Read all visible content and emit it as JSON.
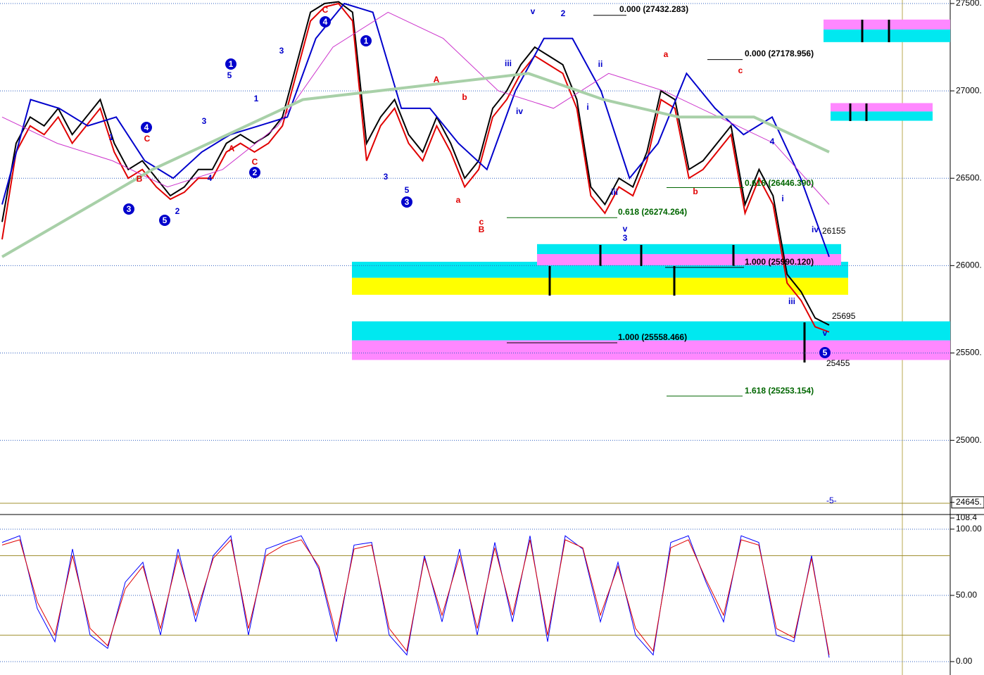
{
  "chart_data": [
    {
      "type": "line",
      "grid": true,
      "ylim": [
        24640,
        27520
      ],
      "yticks": [
        {
          "value": 27500,
          "label": "27500."
        },
        {
          "value": 27000,
          "label": "27000."
        },
        {
          "value": 26500,
          "label": "26500."
        },
        {
          "value": 26000,
          "label": "26000."
        },
        {
          "value": 25500,
          "label": "25500."
        },
        {
          "value": 25000,
          "label": "25000."
        },
        {
          "value": 24645,
          "label": "24645."
        }
      ],
      "series": [
        {
          "color": "#000000",
          "values": [
            26250,
            26700,
            26850,
            26800,
            26900,
            26750,
            26850,
            26950,
            26700,
            26550,
            26600,
            26500,
            26400,
            26450,
            26550,
            26550,
            26700,
            26750,
            26700,
            26750,
            26850,
            27150,
            27450,
            27500,
            27510,
            27450,
            26700,
            26850,
            26950,
            26750,
            26650,
            26850,
            26700,
            26500,
            26600,
            26900,
            27000,
            27150,
            27250,
            27200,
            27150,
            26950,
            26450,
            26350,
            26500,
            26450,
            26650,
            27000,
            26950,
            26550,
            26600,
            26700,
            26800,
            26350,
            26550,
            26400,
            25950,
            25850,
            25700,
            25660
          ]
        },
        {
          "color": "#e00000",
          "values": [
            26150,
            26650,
            26800,
            26750,
            26850,
            26700,
            26800,
            26900,
            26650,
            26500,
            26550,
            26450,
            26380,
            26420,
            26500,
            26500,
            26650,
            26700,
            26650,
            26700,
            26800,
            27100,
            27400,
            27480,
            27500,
            27400,
            26600,
            26800,
            26900,
            26700,
            26600,
            26800,
            26650,
            26450,
            26550,
            26850,
            26950,
            27100,
            27200,
            27150,
            27100,
            26900,
            26400,
            26300,
            26450,
            26400,
            26600,
            26950,
            26900,
            26500,
            26550,
            26650,
            26750,
            26300,
            26500,
            26350,
            25900,
            25800,
            25650,
            25620
          ]
        },
        {
          "color": "#0000cc",
          "values": [
            26350,
            26950,
            26900,
            26800,
            26850,
            26600,
            26500,
            26650,
            26750,
            26800,
            26850,
            27300,
            27500,
            27450,
            26900,
            26900,
            26700,
            26550,
            27000,
            27300,
            27300,
            27000,
            26500,
            26700,
            27100,
            26900,
            26750,
            26850,
            26500,
            26050
          ]
        },
        {
          "color": "#cc33cc",
          "values": [
            26850,
            26700,
            26600,
            26450,
            26550,
            26800,
            27250,
            27450,
            27300,
            27000,
            26900,
            27100,
            27000,
            26850,
            26700,
            26350
          ]
        },
        {
          "color": "#a8d0a8",
          "values": [
            26050,
            26300,
            26550,
            26750,
            26950,
            27000,
            27050,
            27100,
            26950,
            26850,
            26850,
            26650
          ]
        }
      ],
      "levels": [
        {
          "label": "0.000 (27432.283)",
          "value": 27432.283,
          "color": "#000000"
        },
        {
          "label": "0.000 (27178.956)",
          "value": 27178.956,
          "color": "#000000"
        },
        {
          "label": "0.618 (26446.390)",
          "value": 26446.39,
          "color": "#006600"
        },
        {
          "label": "0.618 (26274.264)",
          "value": 26274.264,
          "color": "#006600"
        },
        {
          "label": "1.000 (25990.120)",
          "value": 25990.12,
          "color": "#000000"
        },
        {
          "label": "1.000 (25558.466)",
          "value": 25558.466,
          "color": "#000000"
        },
        {
          "label": "1.618 (25253.154)",
          "value": 25253.154,
          "color": "#006600"
        }
      ],
      "zones": [
        {
          "low": 25572,
          "high": 25681,
          "color": "#00e8f0"
        },
        {
          "low": 25460,
          "high": 25572,
          "color": "#ff88ff"
        },
        {
          "low": 25930,
          "high": 26022,
          "color": "#00e8f0"
        },
        {
          "low": 25833,
          "high": 25930,
          "color": "#ffff00"
        },
        {
          "low": 26066,
          "high": 26123,
          "color": "#00e8f0"
        },
        {
          "low": 26002,
          "high": 26066,
          "color": "#ff88ff"
        },
        {
          "low": 27351,
          "high": 27408,
          "color": "#ff88ff"
        },
        {
          "low": 27279,
          "high": 27351,
          "color": "#00e8f0"
        },
        {
          "low": 26882,
          "high": 26930,
          "color": "#ff88ff"
        },
        {
          "low": 26829,
          "high": 26882,
          "color": "#00e8f0"
        }
      ],
      "price_labels": [
        "26155",
        "25695",
        "25455",
        "-5-"
      ],
      "annotations": [
        {
          "text": "1",
          "color": "#0000cc",
          "circled": true
        },
        {
          "text": "5",
          "color": "#0000cc"
        },
        {
          "text": "3",
          "color": "#0000cc",
          "circled": true
        },
        {
          "text": "5",
          "color": "#0000cc",
          "circled": true
        },
        {
          "text": "2",
          "color": "#0000cc",
          "circled": true
        },
        {
          "text": "4",
          "color": "#0000cc",
          "circled": true
        },
        {
          "text": "1",
          "color": "#0000cc",
          "circled": true
        },
        {
          "text": "4",
          "color": "#0000cc",
          "circled": true
        },
        {
          "text": "3",
          "color": "#0000cc",
          "circled": true
        },
        {
          "text": "5",
          "color": "#0000cc",
          "circled": true
        },
        {
          "text": "C",
          "color": "#e00000"
        },
        {
          "text": "A",
          "color": "#e00000"
        },
        {
          "text": "B",
          "color": "#e00000"
        },
        {
          "text": "c",
          "color": "#e00000"
        },
        {
          "text": "a",
          "color": "#e00000"
        },
        {
          "text": "b",
          "color": "#e00000"
        },
        {
          "text": "a",
          "color": "#e00000"
        },
        {
          "text": "c",
          "color": "#e00000"
        },
        {
          "text": "b",
          "color": "#e00000"
        },
        {
          "text": "B",
          "color": "#e00000"
        },
        {
          "text": "C",
          "color": "#e00000"
        },
        {
          "text": "A",
          "color": "#e00000"
        },
        {
          "text": "C",
          "color": "#e00000"
        },
        {
          "text": "v",
          "color": "#0000cc"
        },
        {
          "text": "2",
          "color": "#0000cc"
        },
        {
          "text": "iii",
          "color": "#0000cc"
        },
        {
          "text": "iv",
          "color": "#0000cc"
        },
        {
          "text": "i",
          "color": "#0000cc"
        },
        {
          "text": "ii",
          "color": "#0000cc"
        },
        {
          "text": "iii",
          "color": "#0000cc"
        },
        {
          "text": "v",
          "color": "#0000cc"
        },
        {
          "text": "3",
          "color": "#0000cc"
        },
        {
          "text": "i",
          "color": "#0000cc"
        },
        {
          "text": "iii",
          "color": "#0000cc"
        },
        {
          "text": "iv",
          "color": "#0000cc"
        },
        {
          "text": "v",
          "color": "#0000cc"
        },
        {
          "text": "4",
          "color": "#0000cc"
        },
        {
          "text": "3",
          "color": "#0000cc"
        },
        {
          "text": "5",
          "color": "#0000cc"
        },
        {
          "text": "1",
          "color": "#0000cc"
        },
        {
          "text": "2",
          "color": "#0000cc"
        },
        {
          "text": "3",
          "color": "#0000cc"
        },
        {
          "text": "4",
          "color": "#0000cc"
        },
        {
          "text": "1",
          "color": "#0000cc"
        },
        {
          "text": "3",
          "color": "#0000cc"
        }
      ]
    },
    {
      "type": "line",
      "grid": true,
      "ylim": [
        -8,
        110
      ],
      "yticks": [
        {
          "value": 108.4,
          "label": "108.4"
        },
        {
          "value": 100,
          "label": "100.00"
        },
        {
          "value": 50,
          "label": "50.00"
        },
        {
          "value": 0,
          "label": "0.00"
        }
      ],
      "reference_lines": [
        80,
        20
      ],
      "series": [
        {
          "color": "#0000ff",
          "values": [
            90,
            95,
            40,
            15,
            85,
            20,
            10,
            60,
            75,
            20,
            85,
            30,
            80,
            95,
            20,
            85,
            90,
            95,
            70,
            15,
            88,
            90,
            20,
            5,
            80,
            30,
            85,
            20,
            90,
            30,
            95,
            15,
            95,
            85,
            30,
            75,
            20,
            5,
            90,
            95,
            60,
            30,
            95,
            90,
            20,
            15,
            80,
            3
          ]
        },
        {
          "color": "#e00000",
          "values": [
            88,
            92,
            45,
            20,
            80,
            25,
            12,
            55,
            72,
            25,
            80,
            35,
            78,
            92,
            25,
            80,
            88,
            92,
            72,
            20,
            85,
            88,
            25,
            8,
            78,
            35,
            80,
            25,
            86,
            35,
            92,
            20,
            92,
            86,
            35,
            72,
            25,
            8,
            86,
            92,
            62,
            35,
            92,
            88,
            25,
            18,
            78,
            5
          ]
        }
      ]
    }
  ]
}
